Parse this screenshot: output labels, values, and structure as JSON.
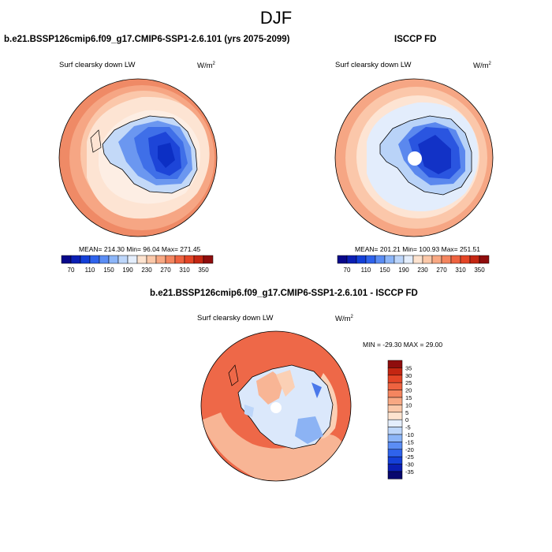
{
  "season": "DJF",
  "variable_label": "Surf clearsky down LW",
  "units_base": "W/m",
  "units_exp": "2",
  "panels": {
    "model": {
      "title": "b.e21.BSSP126cmip6.f09_g17.CMIP6-SSP1-2.6.101 (yrs 2075-2099)",
      "stats": "MEAN= 214.30  Min=  96.04  Max= 271.45"
    },
    "obs": {
      "title": "ISCCP FD",
      "stats": "MEAN= 201.21  Min= 100.93  Max= 251.51"
    },
    "diff": {
      "title": "b.e21.BSSP126cmip6.f09_g17.CMIP6-SSP1-2.6.101 - ISCCP FD",
      "stats": "MIN = -29.30 MAX =  29.00"
    }
  },
  "colorbar_abs": {
    "colors": [
      "#08088a",
      "#0b1fb4",
      "#1440d8",
      "#2f63ec",
      "#5b8df4",
      "#8cb5f8",
      "#bdd6fa",
      "#e4eefc",
      "#fde3cf",
      "#fbc8a9",
      "#f8a883",
      "#f4855f",
      "#ee6340",
      "#e44526",
      "#c42612",
      "#8f0d0d"
    ],
    "tick_labels": [
      "70",
      "110",
      "150",
      "190",
      "230",
      "270",
      "310",
      "350"
    ]
  },
  "colorbar_diff": {
    "colors": [
      "#08086e",
      "#0b1fb4",
      "#1540d8",
      "#2f63ec",
      "#5b8df4",
      "#8cb5f8",
      "#bdd6fa",
      "#e4eefc",
      "#fde3cf",
      "#fbc8a9",
      "#f8a883",
      "#f4855f",
      "#ee6340",
      "#e44526",
      "#c42612",
      "#8f0d0d"
    ],
    "tick_labels": [
      "35",
      "30",
      "25",
      "20",
      "15",
      "10",
      "5",
      "0",
      "-5",
      "-10",
      "-15",
      "-20",
      "-25",
      "-30",
      "-35"
    ]
  }
}
